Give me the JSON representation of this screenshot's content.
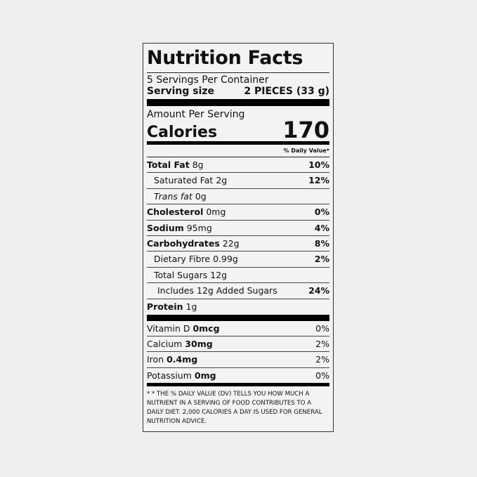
{
  "title": "Nutrition Facts",
  "servings_per_container": "5 Servings Per Container",
  "serving_size_label": "Serving size",
  "serving_size_value": "2 PIECES (33 g)",
  "amount_per_serving": "Amount Per Serving",
  "calories_label": "Calories",
  "calories_value": "170",
  "daily_value_header": "% Daily Value*",
  "nutrients": [
    {
      "name": "Total Fat",
      "amount": "8g",
      "dv": "10%"
    },
    {
      "name": "Saturated Fat",
      "amount": "2g",
      "dv": "12%"
    },
    {
      "name": "Trans fat",
      "amount": "0g",
      "dv": ""
    },
    {
      "name": "Cholesterol",
      "amount": "0mg",
      "dv": "0%"
    },
    {
      "name": "Sodium",
      "amount": "95mg",
      "dv": "4%"
    },
    {
      "name": "Carbohydrates",
      "amount": "22g",
      "dv": "8%"
    },
    {
      "name": "Dietary Fibre",
      "amount": "0.99g",
      "dv": "2%"
    },
    {
      "name": "Total Sugars",
      "amount": "12g",
      "dv": ""
    },
    {
      "name": "Includes 12g Added Sugars",
      "amount": "",
      "dv": "24%"
    },
    {
      "name": "Protein",
      "amount": "1g",
      "dv": ""
    }
  ],
  "vitamins": [
    {
      "name": "Vitamin D",
      "amount": "0mcg",
      "dv": "0%"
    },
    {
      "name": "Calcium",
      "amount": "30mg",
      "dv": "2%"
    },
    {
      "name": "Iron",
      "amount": "0.4mg",
      "dv": "2%"
    },
    {
      "name": "Potassium",
      "amount": "0mg",
      "dv": "0%"
    }
  ],
  "footnote": "* * The % Daily Value (DV) tells you how much a nutrient in a serving of food contributes to a daily diet. 2,000 calories a day is used for general nutrition advice."
}
